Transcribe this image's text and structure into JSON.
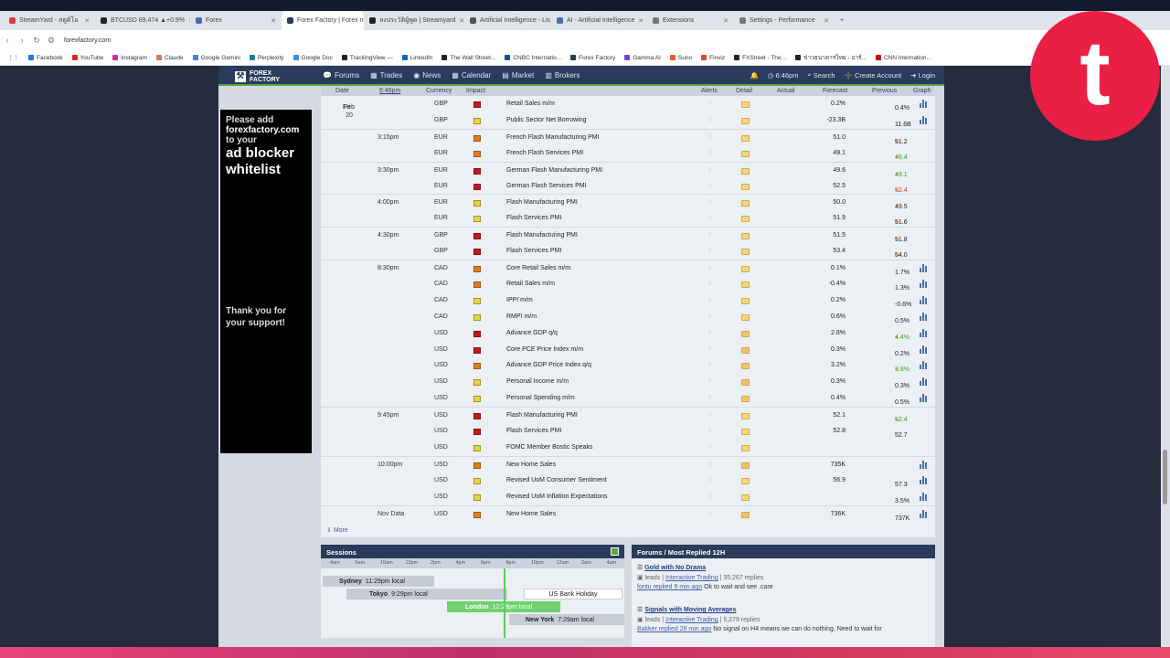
{
  "browser": {
    "tabs": [
      {
        "label": "StreamYard - สตูดิโอ",
        "color": "#e23b3b"
      },
      {
        "label": "BTCUSD 89,474 ▲+0.9%",
        "color": "#222222"
      },
      {
        "label": "Forex",
        "color": "#4a6fb0"
      },
      {
        "label": "Forex Factory | Forex ma",
        "color": "#2a3b5c"
      },
      {
        "label": "ลงประวัติผู้พูด | Streamyard",
        "color": "#222222"
      },
      {
        "label": "Artificial Intelligence - Lis",
        "color": "#555555"
      },
      {
        "label": "AI - Artificial Intelligence",
        "color": "#4a6fb0"
      },
      {
        "label": "Extensions",
        "color": "#777777"
      },
      {
        "label": "Settings - Performance",
        "color": "#777777"
      }
    ],
    "url": "forexfactory.com",
    "bookmarks": [
      {
        "label": "Facebook",
        "color": "#1877f2"
      },
      {
        "label": "YouTube",
        "color": "#e62117"
      },
      {
        "label": "Instagram",
        "color": "#d6249f"
      },
      {
        "label": "Claude",
        "color": "#d97757"
      },
      {
        "label": "Google Gemini",
        "color": "#4a7be8"
      },
      {
        "label": "Perplexity",
        "color": "#20808d"
      },
      {
        "label": "Google Doc",
        "color": "#4285f4"
      },
      {
        "label": "TrackingView —",
        "color": "#222222"
      },
      {
        "label": "LinkedIn",
        "color": "#0a66c2"
      },
      {
        "label": "The Wall Street...",
        "color": "#222222"
      },
      {
        "label": "CNBC Internatio...",
        "color": "#005594"
      },
      {
        "label": "Forex Factory",
        "color": "#2a3b5c"
      },
      {
        "label": "Gamma AI",
        "color": "#7a3be8"
      },
      {
        "label": "Suno",
        "color": "#e85d2a"
      },
      {
        "label": "Finviz",
        "color": "#e04a2a"
      },
      {
        "label": "FXStreet - The...",
        "color": "#222222"
      },
      {
        "label": "ข่าวธนาคารไทย - อาร์...",
        "color": "#222222"
      },
      {
        "label": "CNN Internation...",
        "color": "#cc0000"
      }
    ]
  },
  "ff": {
    "logo_line1": "FOREX",
    "logo_line2": "FACTORY",
    "nav": [
      {
        "label": "Forums",
        "icon": "💬"
      },
      {
        "label": "Trades",
        "icon": "▦"
      },
      {
        "label": "News",
        "icon": "◉"
      },
      {
        "label": "Calendar",
        "icon": "▦"
      },
      {
        "label": "Market",
        "icon": "▤"
      },
      {
        "label": "Brokers",
        "icon": "▥"
      }
    ],
    "right": {
      "bell_icon": "🔔",
      "clock": "6:46pm",
      "search": "Search",
      "create": "Create Account",
      "login": "Login"
    }
  },
  "ad": {
    "line1": "Please add",
    "line2": "forexfactory.com",
    "line3": "to your",
    "line4": "ad blocker",
    "line5": "whitelist",
    "thanks1": "Thank you for",
    "thanks2": "your support!"
  },
  "calendar": {
    "headers": {
      "date": "Date",
      "time": "6:46pm",
      "currency": "Currency",
      "impact": "Impact",
      "alerts": "Alerts",
      "detail": "Detail",
      "actual": "Actual",
      "forecast": "Forecast",
      "previous": "Previous",
      "graph": "Graph"
    },
    "rows": [
      {
        "date": "Fri",
        "date2": "Feb 20",
        "time": "",
        "cur": "GBP",
        "impact": "red",
        "event": "Retail Sales m/m",
        "fc": "0.2%",
        "pv": "0.4%",
        "pvc": "",
        "graph": true
      },
      {
        "date": "",
        "date2": "",
        "time": "",
        "cur": "GBP",
        "impact": "yel",
        "event": "Public Sector Net Borrowing",
        "fc": "-23.3B",
        "pv": "11.6B",
        "pvc": "",
        "graph": true
      },
      {
        "date": "",
        "date2": "",
        "time": "3:15pm",
        "cur": "EUR",
        "impact": "org",
        "event": "French Flash Manufacturing PMI",
        "fc": "51.0",
        "pv": "51.2",
        "pvc": "",
        "graph": false
      },
      {
        "date": "",
        "date2": "",
        "time": "",
        "cur": "EUR",
        "impact": "org",
        "event": "French Flash Services PMI",
        "fc": "49.1",
        "pv": "48.4",
        "pvc": "g",
        "graph": false
      },
      {
        "date": "",
        "date2": "",
        "time": "3:30pm",
        "cur": "EUR",
        "impact": "red",
        "event": "German Flash Manufacturing PMI",
        "fc": "49.6",
        "pv": "49.1",
        "pvc": "g",
        "graph": false
      },
      {
        "date": "",
        "date2": "",
        "time": "",
        "cur": "EUR",
        "impact": "red",
        "event": "German Flash Services PMI",
        "fc": "52.5",
        "pv": "52.4",
        "pvc": "r",
        "graph": false
      },
      {
        "date": "",
        "date2": "",
        "time": "4:00pm",
        "cur": "EUR",
        "impact": "yel",
        "event": "Flash Manufacturing PMI",
        "fc": "50.0",
        "pv": "49.5",
        "pvc": "",
        "graph": false
      },
      {
        "date": "",
        "date2": "",
        "time": "",
        "cur": "EUR",
        "impact": "yel",
        "event": "Flash Services PMI",
        "fc": "51.9",
        "pv": "51.6",
        "pvc": "",
        "graph": false
      },
      {
        "date": "",
        "date2": "",
        "time": "4:30pm",
        "cur": "GBP",
        "impact": "red",
        "event": "Flash Manufacturing PMI",
        "fc": "51.5",
        "pv": "51.8",
        "pvc": "",
        "graph": false
      },
      {
        "date": "",
        "date2": "",
        "time": "",
        "cur": "GBP",
        "impact": "red",
        "event": "Flash Services PMI",
        "fc": "53.4",
        "pv": "54.0",
        "pvc": "",
        "graph": false
      },
      {
        "date": "",
        "date2": "",
        "time": "8:30pm",
        "cur": "CAD",
        "impact": "org",
        "event": "Core Retail Sales m/m",
        "fc": "0.1%",
        "pv": "1.7%",
        "pvc": "",
        "graph": true
      },
      {
        "date": "",
        "date2": "",
        "time": "",
        "cur": "CAD",
        "impact": "org",
        "event": "Retail Sales m/m",
        "fc": "-0.4%",
        "pv": "1.3%",
        "pvc": "",
        "graph": true
      },
      {
        "date": "",
        "date2": "",
        "time": "",
        "cur": "CAD",
        "impact": "yel",
        "event": "IPPI m/m",
        "fc": "0.2%",
        "pv": "-0.6%",
        "pvc": "",
        "graph": true
      },
      {
        "date": "",
        "date2": "",
        "time": "",
        "cur": "CAD",
        "impact": "yel",
        "event": "RMPI m/m",
        "fc": "0.6%",
        "pv": "0.5%",
        "pvc": "",
        "graph": true
      },
      {
        "date": "",
        "date2": "",
        "time": "",
        "cur": "USD",
        "impact": "red",
        "event": "Advance GDP q/q",
        "fc": "2.8%",
        "pv": "4.4%",
        "pvc": "g",
        "graph": true
      },
      {
        "date": "",
        "date2": "",
        "time": "",
        "cur": "USD",
        "impact": "red",
        "event": "Core PCE Price Index m/m",
        "fc": "0.3%",
        "pv": "0.2%",
        "pvc": "",
        "graph": true
      },
      {
        "date": "",
        "date2": "",
        "time": "",
        "cur": "USD",
        "impact": "org",
        "event": "Advance GDP Price Index q/q",
        "fc": "3.2%",
        "pv": "3.8%",
        "pvc": "g",
        "graph": true
      },
      {
        "date": "",
        "date2": "",
        "time": "",
        "cur": "USD",
        "impact": "yel",
        "event": "Personal Income m/m",
        "fc": "0.3%",
        "pv": "0.3%",
        "pvc": "",
        "graph": true
      },
      {
        "date": "",
        "date2": "",
        "time": "",
        "cur": "USD",
        "impact": "yel",
        "event": "Personal Spending m/m",
        "fc": "0.4%",
        "pv": "0.5%",
        "pvc": "",
        "graph": true
      },
      {
        "date": "",
        "date2": "",
        "time": "9:45pm",
        "cur": "USD",
        "impact": "red",
        "event": "Flash Manufacturing PMI",
        "fc": "52.1",
        "pv": "52.4",
        "pvc": "g",
        "graph": false
      },
      {
        "date": "",
        "date2": "",
        "time": "",
        "cur": "USD",
        "impact": "red",
        "event": "Flash Services PMI",
        "fc": "52.8",
        "pv": "52.7",
        "pvc": "",
        "graph": false
      },
      {
        "date": "",
        "date2": "",
        "time": "",
        "cur": "USD",
        "impact": "yel",
        "event": "FOMC Member Bostic Speaks",
        "fc": "",
        "pv": "",
        "pvc": "",
        "graph": false
      },
      {
        "date": "",
        "date2": "",
        "time": "10:00pm",
        "cur": "USD",
        "impact": "org",
        "event": "New Home Sales",
        "fc": "735K",
        "pv": "",
        "pvc": "",
        "graph": true
      },
      {
        "date": "",
        "date2": "",
        "time": "",
        "cur": "USD",
        "impact": "yel",
        "event": "Revised UoM Consumer Sentiment",
        "fc": "56.9",
        "pv": "57.3",
        "pvc": "",
        "graph": true
      },
      {
        "date": "",
        "date2": "",
        "time": "",
        "cur": "USD",
        "impact": "yel",
        "event": "Revised UoM Inflation Expectations",
        "fc": "",
        "pv": "3.5%",
        "pvc": "",
        "graph": true
      },
      {
        "date": "",
        "date2": "",
        "time": "Nov Data",
        "cur": "USD",
        "impact": "org",
        "event": "New Home Sales",
        "fc": "736K",
        "pv": "737K",
        "pvc": "",
        "graph": true
      }
    ],
    "more": "More"
  },
  "sessions": {
    "title": "Sessions",
    "hours": [
      "4am",
      "6am",
      "10am",
      "12pm",
      "2pm",
      "4pm",
      "6pm",
      "8pm",
      "10pm",
      "12am",
      "2am",
      "4am"
    ],
    "sydney": {
      "name": "Sydney",
      "time": "11:29pm local"
    },
    "tokyo": {
      "name": "Tokyo",
      "time": "9:29pm local"
    },
    "holiday": "US Bank Holiday",
    "london": {
      "name": "London",
      "time": "12:29pm local"
    },
    "newyork": {
      "name": "New York",
      "time": "7:29am local"
    }
  },
  "forums": {
    "title": "Forums / Most Replied 12H",
    "items": [
      {
        "title": "Gold with No Drama",
        "leads": "leads",
        "cat": "Interactive Trading",
        "replies": "35,267 replies",
        "last_user": "fontu replied 9 min ago",
        "last_text": "Ok to wait and see .care"
      },
      {
        "title": "Signals with Moving Averages",
        "leads": "leads",
        "cat": "Interactive Trading",
        "replies": "5,279 replies",
        "last_user": "Bakker replied 28 min ago",
        "last_text": "No signal on H4 means we can do nothing. Need to wait for"
      }
    ]
  },
  "badge_letter": "t"
}
